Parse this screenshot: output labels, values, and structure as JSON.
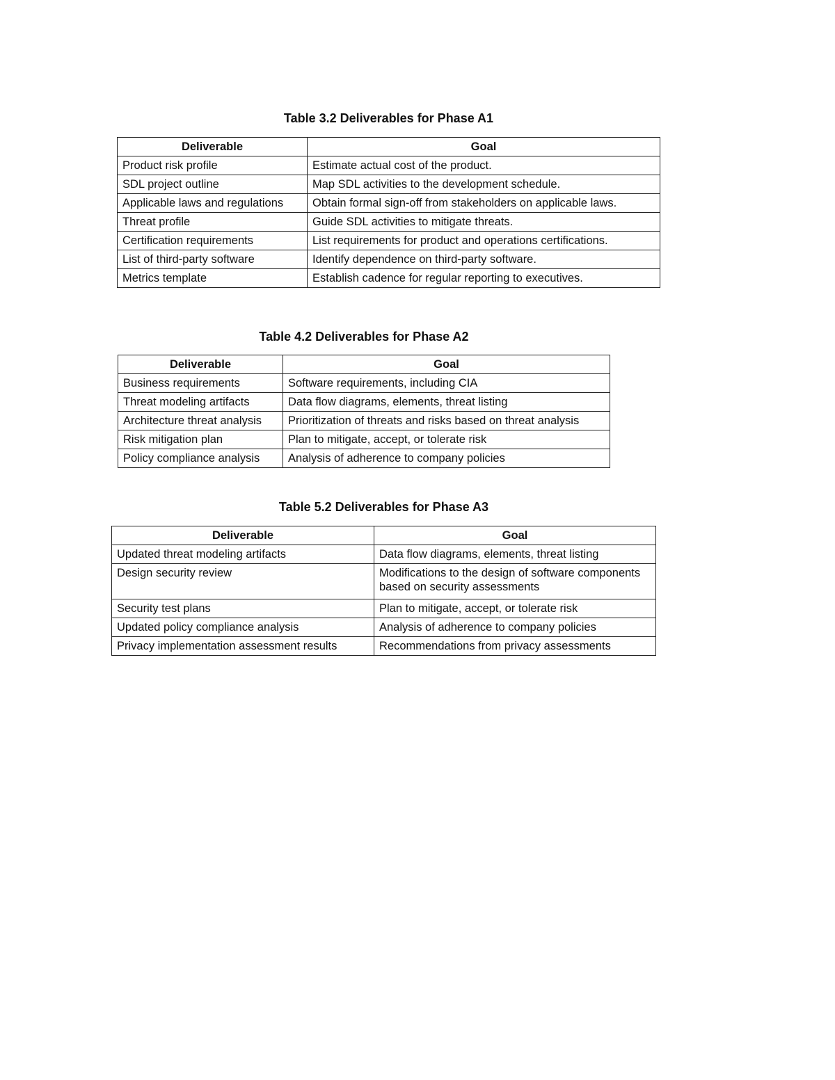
{
  "tables": [
    {
      "caption": "Table 3.2  Deliverables for Phase A1",
      "headers": [
        "Deliverable",
        "Goal"
      ],
      "rows": [
        [
          "Product risk profile",
          "Estimate actual cost of the product."
        ],
        [
          "SDL project outline",
          "Map SDL activities to the development schedule."
        ],
        [
          "Applicable laws and regulations",
          "Obtain formal sign-off from stakeholders on applicable laws."
        ],
        [
          "Threat profile",
          "Guide SDL activities to mitigate threats."
        ],
        [
          "Certification requirements",
          "List requirements for product and operations certifications."
        ],
        [
          "List of third-party software",
          "Identify dependence on third-party software."
        ],
        [
          "Metrics template",
          "Establish cadence for regular reporting to executives."
        ]
      ]
    },
    {
      "caption": "Table 4.2  Deliverables for Phase A2",
      "headers": [
        "Deliverable",
        "Goal"
      ],
      "rows": [
        [
          "Business requirements",
          "Software requirements, including CIA"
        ],
        [
          "Threat modeling artifacts",
          "Data flow diagrams, elements, threat listing"
        ],
        [
          "Architecture threat analysis",
          "Prioritization of threats and risks based on threat analysis"
        ],
        [
          "Risk mitigation plan",
          "Plan to mitigate, accept, or tolerate risk"
        ],
        [
          "Policy compliance analysis",
          "Analysis of adherence to company policies"
        ]
      ]
    },
    {
      "caption": "Table 5.2  Deliverables for Phase A3",
      "headers": [
        "Deliverable",
        "Goal"
      ],
      "rows": [
        [
          "Updated threat modeling artifacts",
          "Data flow diagrams, elements, threat listing"
        ],
        [
          "Design security review",
          "Modifications to the design of software components based on security assessments"
        ],
        [
          "Security test plans",
          "Plan to mitigate, accept, or tolerate risk"
        ],
        [
          "Updated policy compliance analysis",
          "Analysis of adherence to company policies"
        ],
        [
          "Privacy implementation assessment results",
          "Recommendations from privacy assessments"
        ]
      ]
    }
  ]
}
